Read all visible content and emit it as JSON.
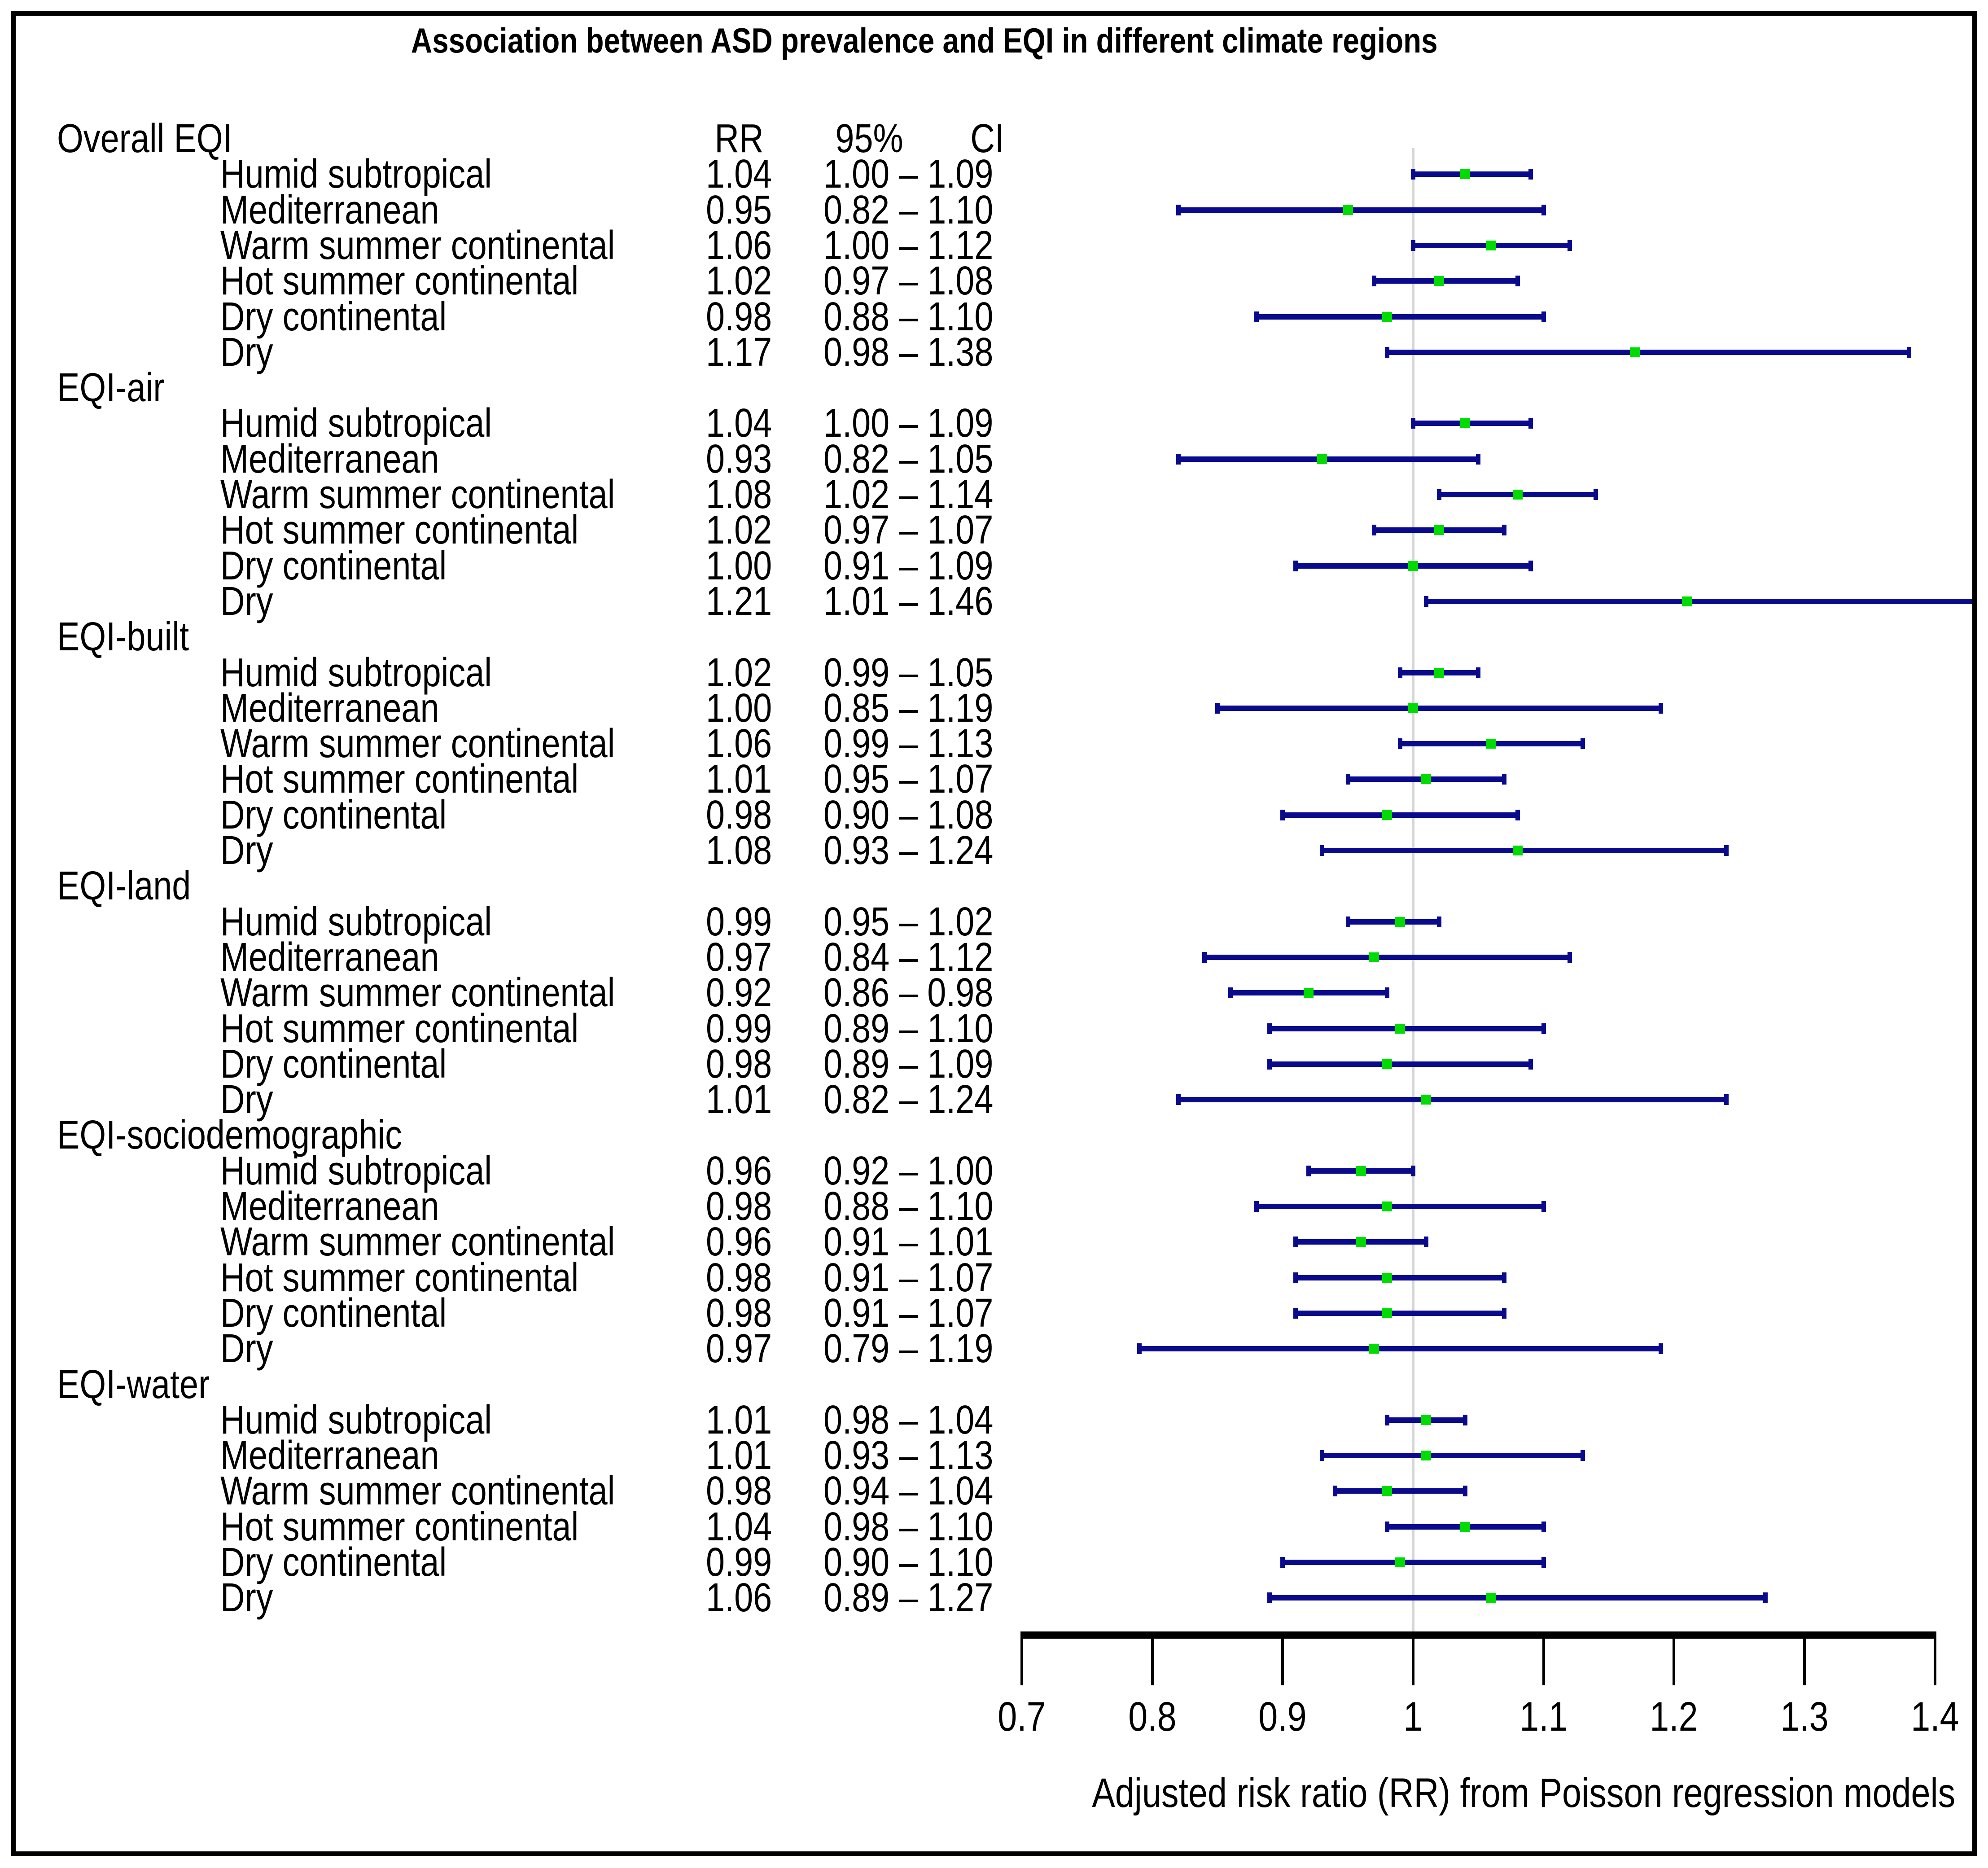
{
  "chart_data": {
    "type": "scatter",
    "variant": "forest-plot",
    "title": "Association between ASD prevalence and EQI in different climate regions",
    "xlabel": "Adjusted risk ratio (RR) from Poisson regression models",
    "xlim": [
      0.7,
      1.4
    ],
    "xticks": [
      "0.7",
      "0.8",
      "0.9",
      "1",
      "1.1",
      "1.2",
      "1.3",
      "1.4"
    ],
    "reference_line": 1.0,
    "grid": false,
    "legend": "none",
    "columns": {
      "rr": "RR",
      "ci_a": "95%",
      "ci_b": "CI"
    },
    "colors": {
      "ci_bar": "#0a0a8c",
      "point_estimate": "#00dc00",
      "reference_line": "#d6d6d6",
      "axis": "#000000",
      "text": "#000000",
      "border": "#000000",
      "background": "#ffffff"
    },
    "groups": [
      {
        "label": "Overall EQI",
        "rows": [
          {
            "label": "Humid subtropical",
            "rr": "1.04",
            "ci": "1.00 – 1.09",
            "est": 1.04,
            "lo": 1.0,
            "hi": 1.09
          },
          {
            "label": "Mediterranean",
            "rr": "0.95",
            "ci": "0.82 – 1.10",
            "est": 0.95,
            "lo": 0.82,
            "hi": 1.1
          },
          {
            "label": "Warm summer continental",
            "rr": "1.06",
            "ci": "1.00 – 1.12",
            "est": 1.06,
            "lo": 1.0,
            "hi": 1.12
          },
          {
            "label": "Hot summer continental",
            "rr": "1.02",
            "ci": "0.97 – 1.08",
            "est": 1.02,
            "lo": 0.97,
            "hi": 1.08
          },
          {
            "label": "Dry continental",
            "rr": "0.98",
            "ci": "0.88 – 1.10",
            "est": 0.98,
            "lo": 0.88,
            "hi": 1.1
          },
          {
            "label": "Dry",
            "rr": "1.17",
            "ci": "0.98 – 1.38",
            "est": 1.17,
            "lo": 0.98,
            "hi": 1.38
          }
        ]
      },
      {
        "label": "EQI-air",
        "rows": [
          {
            "label": "Humid subtropical",
            "rr": "1.04",
            "ci": "1.00 – 1.09",
            "est": 1.04,
            "lo": 1.0,
            "hi": 1.09
          },
          {
            "label": "Mediterranean",
            "rr": "0.93",
            "ci": "0.82 – 1.05",
            "est": 0.93,
            "lo": 0.82,
            "hi": 1.05
          },
          {
            "label": "Warm summer continental",
            "rr": "1.08",
            "ci": "1.02 – 1.14",
            "est": 1.08,
            "lo": 1.02,
            "hi": 1.14
          },
          {
            "label": "Hot summer continental",
            "rr": "1.02",
            "ci": "0.97 – 1.07",
            "est": 1.02,
            "lo": 0.97,
            "hi": 1.07
          },
          {
            "label": "Dry continental",
            "rr": "1.00",
            "ci": "0.91 – 1.09",
            "est": 1.0,
            "lo": 0.91,
            "hi": 1.09
          },
          {
            "label": "Dry",
            "rr": "1.21",
            "ci": "1.01 – 1.46",
            "est": 1.21,
            "lo": 1.01,
            "hi": 1.46
          }
        ]
      },
      {
        "label": "EQI-built",
        "rows": [
          {
            "label": "Humid subtropical",
            "rr": "1.02",
            "ci": "0.99 – 1.05",
            "est": 1.02,
            "lo": 0.99,
            "hi": 1.05
          },
          {
            "label": "Mediterranean",
            "rr": "1.00",
            "ci": "0.85 – 1.19",
            "est": 1.0,
            "lo": 0.85,
            "hi": 1.19
          },
          {
            "label": "Warm summer continental",
            "rr": "1.06",
            "ci": "0.99 – 1.13",
            "est": 1.06,
            "lo": 0.99,
            "hi": 1.13
          },
          {
            "label": "Hot summer continental",
            "rr": "1.01",
            "ci": "0.95 – 1.07",
            "est": 1.01,
            "lo": 0.95,
            "hi": 1.07
          },
          {
            "label": "Dry continental",
            "rr": "0.98",
            "ci": "0.90 – 1.08",
            "est": 0.98,
            "lo": 0.9,
            "hi": 1.08
          },
          {
            "label": "Dry",
            "rr": "1.08",
            "ci": "0.93 – 1.24",
            "est": 1.08,
            "lo": 0.93,
            "hi": 1.24
          }
        ]
      },
      {
        "label": "EQI-land",
        "rows": [
          {
            "label": "Humid subtropical",
            "rr": "0.99",
            "ci": "0.95 – 1.02",
            "est": 0.99,
            "lo": 0.95,
            "hi": 1.02
          },
          {
            "label": "Mediterranean",
            "rr": "0.97",
            "ci": "0.84 – 1.12",
            "est": 0.97,
            "lo": 0.84,
            "hi": 1.12
          },
          {
            "label": "Warm summer continental",
            "rr": "0.92",
            "ci": "0.86 – 0.98",
            "est": 0.92,
            "lo": 0.86,
            "hi": 0.98
          },
          {
            "label": "Hot summer continental",
            "rr": "0.99",
            "ci": "0.89 – 1.10",
            "est": 0.99,
            "lo": 0.89,
            "hi": 1.1
          },
          {
            "label": "Dry continental",
            "rr": "0.98",
            "ci": "0.89 – 1.09",
            "est": 0.98,
            "lo": 0.89,
            "hi": 1.09
          },
          {
            "label": "Dry",
            "rr": "1.01",
            "ci": "0.82 – 1.24",
            "est": 1.01,
            "lo": 0.82,
            "hi": 1.24
          }
        ]
      },
      {
        "label": "EQI-sociodemographic",
        "rows": [
          {
            "label": "Humid subtropical",
            "rr": "0.96",
            "ci": "0.92 – 1.00",
            "est": 0.96,
            "lo": 0.92,
            "hi": 1.0
          },
          {
            "label": "Mediterranean",
            "rr": "0.98",
            "ci": "0.88 – 1.10",
            "est": 0.98,
            "lo": 0.88,
            "hi": 1.1
          },
          {
            "label": "Warm summer continental",
            "rr": "0.96",
            "ci": "0.91 – 1.01",
            "est": 0.96,
            "lo": 0.91,
            "hi": 1.01
          },
          {
            "label": "Hot summer continental",
            "rr": "0.98",
            "ci": "0.91 – 1.07",
            "est": 0.98,
            "lo": 0.91,
            "hi": 1.07
          },
          {
            "label": "Dry continental",
            "rr": "0.98",
            "ci": "0.91 – 1.07",
            "est": 0.98,
            "lo": 0.91,
            "hi": 1.07
          },
          {
            "label": "Dry",
            "rr": "0.97",
            "ci": "0.79 – 1.19",
            "est": 0.97,
            "lo": 0.79,
            "hi": 1.19
          }
        ]
      },
      {
        "label": "EQI-water",
        "rows": [
          {
            "label": "Humid subtropical",
            "rr": "1.01",
            "ci": "0.98 – 1.04",
            "est": 1.01,
            "lo": 0.98,
            "hi": 1.04
          },
          {
            "label": "Mediterranean",
            "rr": "1.01",
            "ci": "0.93 – 1.13",
            "est": 1.01,
            "lo": 0.93,
            "hi": 1.13
          },
          {
            "label": "Warm summer continental",
            "rr": "0.98",
            "ci": "0.94 – 1.04",
            "est": 0.98,
            "lo": 0.94,
            "hi": 1.04
          },
          {
            "label": "Hot summer continental",
            "rr": "1.04",
            "ci": "0.98 – 1.10",
            "est": 1.04,
            "lo": 0.98,
            "hi": 1.1
          },
          {
            "label": "Dry continental",
            "rr": "0.99",
            "ci": "0.90 – 1.10",
            "est": 0.99,
            "lo": 0.9,
            "hi": 1.1
          },
          {
            "label": "Dry",
            "rr": "1.06",
            "ci": "0.89 – 1.27",
            "est": 1.06,
            "lo": 0.89,
            "hi": 1.27
          }
        ]
      }
    ]
  }
}
